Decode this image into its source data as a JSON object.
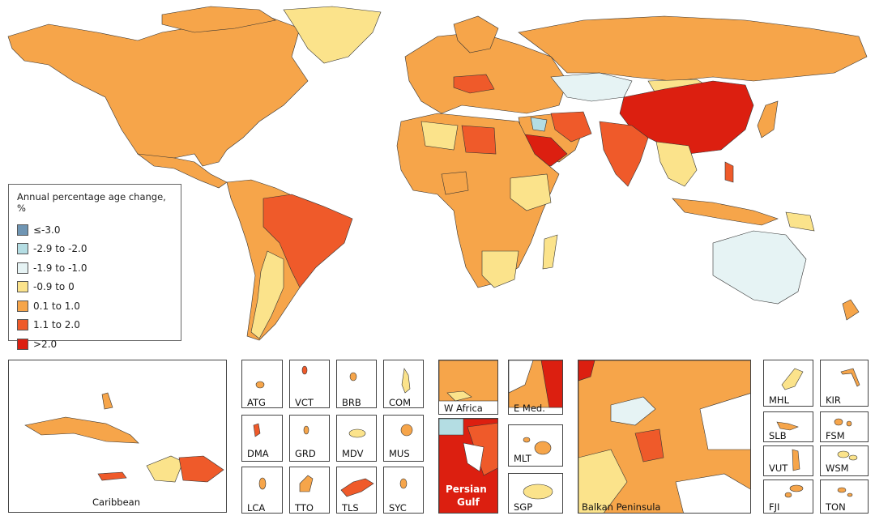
{
  "legend": {
    "title": "Annual percentage age change, %",
    "items": [
      {
        "label": "≤-3.0",
        "color": "#6f95b3"
      },
      {
        "label": "-2.9 to -2.0",
        "color": "#b4dde3"
      },
      {
        "label": "-1.9 to -1.0",
        "color": "#e6f3f4"
      },
      {
        "label": "-0.9 to 0",
        "color": "#fbe38b"
      },
      {
        "label": "0.1 to 1.0",
        "color": "#f6a54a"
      },
      {
        "label": "1.1 to 2.0",
        "color": "#ef5a2a"
      },
      {
        "label": ">2.0",
        "color": "#dc1f10"
      }
    ]
  },
  "insets": {
    "caribbean": "Caribbean",
    "atg": "ATG",
    "vct": "VCT",
    "brb": "BRB",
    "com": "COM",
    "dma": "DMA",
    "grd": "GRD",
    "mdv": "MDV",
    "mus": "MUS",
    "lca": "LCA",
    "tto": "TTO",
    "tls": "TLS",
    "syc": "SYC",
    "w_africa": "W Africa",
    "e_med": "E Med.",
    "persian_gulf_1": "Persian",
    "persian_gulf_2": "Gulf",
    "mlt": "MLT",
    "sgp": "SGP",
    "balkan": "Balkan Peninsula",
    "mhl": "MHL",
    "kir": "KIR",
    "slb": "SLB",
    "fsm": "FSM",
    "vut": "VUT",
    "wsm": "WSM",
    "fji": "FJI",
    "ton": "TON"
  },
  "colors": {
    "c0": "#6f95b3",
    "c1": "#b4dde3",
    "c2": "#e6f3f4",
    "c3": "#fbe38b",
    "c4": "#f6a54a",
    "c5": "#ef5a2a",
    "c6": "#dc1f10"
  }
}
